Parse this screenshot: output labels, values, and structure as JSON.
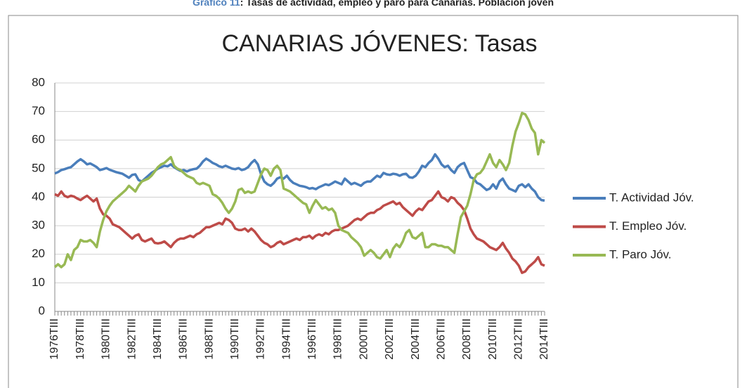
{
  "caption": {
    "label": "Gráfico 11",
    "text": ": Tasas de actividad, empleo y paro para Canarias. Población joven"
  },
  "chart_data": {
    "type": "line",
    "title": "CANARIAS JÓVENES: Tasas",
    "categories": [
      "1976TIII",
      null,
      null,
      null,
      null,
      null,
      null,
      null,
      "1978TIII",
      null,
      null,
      null,
      null,
      null,
      null,
      null,
      "1980TIII",
      null,
      null,
      null,
      null,
      null,
      null,
      null,
      "1982TIII",
      null,
      null,
      null,
      null,
      null,
      null,
      null,
      "1984TIII",
      null,
      null,
      null,
      null,
      null,
      null,
      null,
      "1986TIII",
      null,
      null,
      null,
      null,
      null,
      null,
      null,
      "1988TIII",
      null,
      null,
      null,
      null,
      null,
      null,
      null,
      "1990TIII",
      null,
      null,
      null,
      null,
      null,
      null,
      null,
      "1992TIII",
      null,
      null,
      null,
      null,
      null,
      null,
      null,
      "1994TIII",
      null,
      null,
      null,
      null,
      null,
      null,
      null,
      "1996TIII",
      null,
      null,
      null,
      null,
      null,
      null,
      null,
      "1998TIII",
      null,
      null,
      null,
      null,
      null,
      null,
      null,
      "2000TIII",
      null,
      null,
      null,
      null,
      null,
      null,
      null,
      "2002TIII",
      null,
      null,
      null,
      null,
      null,
      null,
      null,
      "2004TIII",
      null,
      null,
      null,
      null,
      null,
      null,
      null,
      "2006TIII",
      null,
      null,
      null,
      null,
      null,
      null,
      null,
      "2008TIII",
      null,
      null,
      null,
      null,
      null,
      null,
      null,
      "2010TIII",
      null,
      null,
      null,
      null,
      null,
      null,
      null,
      "2012TIII",
      null,
      null,
      null,
      null,
      null,
      null,
      null,
      "2014TIII"
    ],
    "series": [
      {
        "name": "T. Actividad Jóv.",
        "color": "#4a7ebb",
        "values": [
          48.3,
          48.8,
          49.5,
          49.8,
          50.2,
          50.5,
          51.5,
          52.5,
          53.3,
          52.5,
          51.5,
          51.8,
          51.2,
          50.5,
          49.5,
          49.8,
          50.2,
          49.6,
          49.2,
          48.8,
          48.5,
          48.2,
          47.5,
          46.8,
          47.8,
          48.0,
          46.0,
          45.5,
          46.5,
          47.5,
          48.5,
          49.2,
          50.0,
          50.5,
          51.0,
          50.8,
          51.5,
          50.5,
          49.8,
          49.2,
          49.5,
          49.0,
          49.5,
          49.8,
          50.0,
          51.0,
          52.5,
          53.5,
          52.8,
          52.0,
          51.5,
          50.8,
          50.5,
          51.0,
          50.5,
          50.0,
          49.8,
          50.2,
          49.5,
          49.8,
          50.5,
          52.0,
          53.0,
          51.5,
          48.0,
          45.5,
          44.5,
          44.0,
          45.0,
          46.5,
          47.0,
          46.5,
          47.5,
          46.0,
          45.0,
          44.5,
          44.0,
          43.8,
          43.5,
          43.0,
          43.2,
          42.8,
          43.5,
          44.0,
          44.5,
          44.2,
          44.8,
          45.5,
          45.0,
          44.5,
          46.5,
          45.5,
          44.5,
          45.0,
          44.5,
          44.0,
          45.0,
          45.5,
          45.5,
          46.5,
          47.5,
          47.0,
          48.5,
          48.0,
          47.8,
          48.2,
          48.0,
          47.5,
          48.0,
          48.2,
          47.0,
          46.8,
          47.5,
          49.0,
          51.0,
          50.5,
          52.0,
          53.0,
          55.0,
          53.5,
          51.5,
          50.5,
          51.0,
          49.5,
          48.5,
          50.5,
          51.5,
          52.0,
          49.5,
          47.0,
          46.5,
          45.0,
          44.5,
          43.5,
          42.5,
          43.0,
          44.5,
          43.0,
          45.5,
          46.5,
          44.5,
          43.0,
          42.5,
          42.0,
          44.0,
          44.5,
          43.5,
          44.5,
          43.0,
          42.0,
          40.0,
          39.0,
          38.8
        ]
      },
      {
        "name": "T. Empleo Jóv.",
        "color": "#be4b48",
        "values": [
          41.0,
          40.5,
          42.0,
          40.5,
          40.0,
          40.5,
          40.2,
          39.5,
          39.0,
          39.8,
          40.5,
          39.5,
          38.5,
          39.5,
          36.0,
          34.0,
          33.5,
          32.5,
          30.5,
          30.0,
          29.5,
          28.5,
          27.5,
          26.5,
          25.5,
          26.5,
          27.0,
          25.0,
          24.5,
          25.0,
          25.5,
          24.0,
          23.8,
          24.0,
          24.5,
          23.5,
          22.5,
          24.0,
          25.0,
          25.5,
          25.5,
          26.0,
          26.5,
          26.0,
          27.0,
          27.5,
          28.5,
          29.5,
          29.5,
          30.0,
          30.5,
          31.0,
          30.5,
          32.5,
          32.0,
          31.0,
          29.0,
          28.5,
          28.5,
          29.0,
          28.0,
          29.0,
          28.0,
          26.5,
          25.0,
          24.0,
          23.5,
          22.5,
          23.0,
          24.0,
          24.5,
          23.5,
          24.0,
          24.5,
          25.0,
          25.5,
          25.0,
          26.0,
          26.0,
          26.5,
          25.5,
          26.5,
          27.0,
          26.5,
          27.5,
          27.0,
          28.0,
          28.5,
          28.5,
          29.0,
          29.5,
          30.0,
          31.0,
          32.0,
          32.5,
          32.0,
          33.0,
          34.0,
          34.5,
          34.5,
          35.5,
          36.0,
          37.0,
          37.5,
          38.0,
          38.5,
          37.5,
          38.0,
          36.5,
          35.5,
          34.5,
          33.5,
          35.0,
          36.0,
          35.5,
          37.0,
          38.5,
          39.0,
          40.5,
          42.0,
          40.0,
          39.5,
          38.5,
          40.0,
          39.5,
          38.0,
          37.0,
          35.5,
          32.5,
          29.0,
          27.0,
          25.5,
          25.0,
          24.5,
          23.5,
          22.5,
          22.0,
          21.5,
          22.5,
          24.0,
          22.0,
          20.5,
          18.5,
          17.5,
          16.0,
          13.5,
          14.0,
          15.5,
          16.5,
          17.5,
          19.0,
          16.5,
          16.0
        ]
      },
      {
        "name": "T. Paro Jóv.",
        "color": "#98b954",
        "values": [
          15.5,
          16.5,
          15.5,
          16.5,
          20.0,
          18.0,
          21.5,
          22.5,
          25.0,
          24.5,
          24.5,
          25.0,
          24.0,
          22.5,
          28.0,
          32.0,
          35.0,
          37.0,
          38.5,
          39.5,
          40.5,
          41.5,
          42.5,
          44.0,
          43.0,
          42.0,
          44.0,
          45.5,
          46.0,
          46.5,
          47.5,
          49.0,
          50.5,
          51.5,
          52.0,
          53.0,
          54.0,
          51.0,
          50.0,
          49.5,
          48.5,
          47.5,
          47.0,
          46.5,
          45.0,
          44.5,
          45.0,
          44.5,
          44.0,
          41.0,
          40.5,
          39.5,
          38.0,
          36.0,
          34.5,
          36.0,
          38.5,
          42.5,
          43.0,
          41.5,
          42.0,
          41.5,
          42.0,
          45.0,
          48.0,
          50.0,
          49.5,
          47.5,
          50.0,
          51.0,
          49.5,
          43.0,
          42.5,
          42.0,
          41.0,
          40.0,
          39.0,
          38.0,
          37.5,
          34.5,
          37.0,
          39.0,
          37.5,
          36.0,
          36.5,
          35.5,
          36.0,
          34.5,
          30.0,
          28.5,
          28.0,
          27.5,
          26.0,
          25.0,
          24.0,
          22.5,
          19.5,
          20.5,
          21.5,
          20.5,
          19.0,
          18.5,
          20.0,
          21.5,
          19.0,
          22.0,
          23.5,
          22.5,
          24.5,
          27.5,
          28.5,
          26.0,
          25.5,
          26.5,
          27.5,
          22.5,
          22.5,
          23.5,
          23.5,
          23.0,
          23.0,
          22.5,
          22.5,
          21.5,
          20.5,
          27.0,
          33.0,
          35.0,
          37.0,
          41.0,
          46.0,
          48.0,
          48.5,
          50.0,
          52.5,
          55.0,
          52.0,
          50.5,
          53.0,
          51.5,
          49.5,
          52.0,
          58.0,
          63.0,
          66.0,
          69.5,
          69.0,
          67.0,
          64.0,
          62.5,
          55.0,
          60.0,
          59.0
        ]
      }
    ],
    "ylim": [
      0,
      80
    ],
    "yticks": [
      0,
      10,
      20,
      30,
      40,
      50,
      60,
      70,
      80
    ],
    "grid": true,
    "legend": "right"
  }
}
